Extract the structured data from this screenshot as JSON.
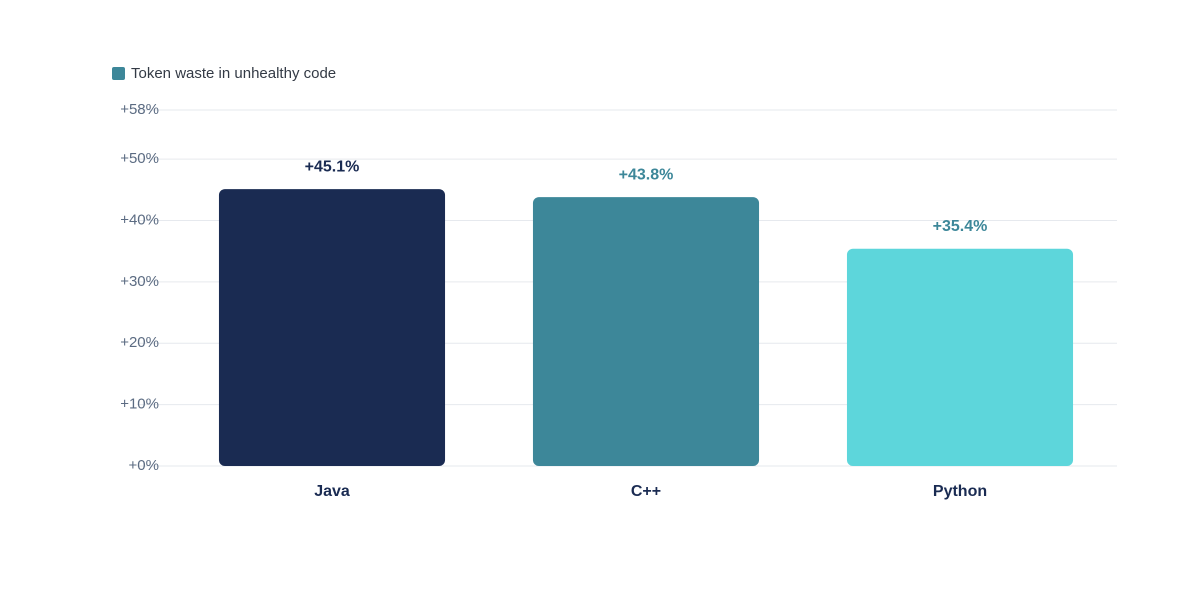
{
  "chart_data": {
    "type": "bar",
    "categories": [
      "Java",
      "C++",
      "Python"
    ],
    "series": [
      {
        "name": "Token waste in unhealthy code",
        "color": "#3d8799",
        "values": [
          45.1,
          43.8,
          35.4
        ],
        "value_labels": [
          "+45.1%",
          "+43.8%",
          "+35.4%"
        ]
      }
    ],
    "bar_colors": [
      "#1a2b52",
      "#3d8799",
      "#5dd6db"
    ],
    "value_label_colors": [
      "#1a2b52",
      "#3d8799",
      "#3d8799"
    ],
    "ylim": [
      0,
      58
    ],
    "yticks": [
      {
        "value": 0,
        "label": "+0%"
      },
      {
        "value": 10,
        "label": "+10%"
      },
      {
        "value": 20,
        "label": "+20%"
      },
      {
        "value": 30,
        "label": "+30%"
      },
      {
        "value": 40,
        "label": "+40%"
      },
      {
        "value": 50,
        "label": "+50%"
      },
      {
        "value": 58,
        "label": "+58%"
      }
    ],
    "grid": true,
    "legend": "top-left"
  }
}
